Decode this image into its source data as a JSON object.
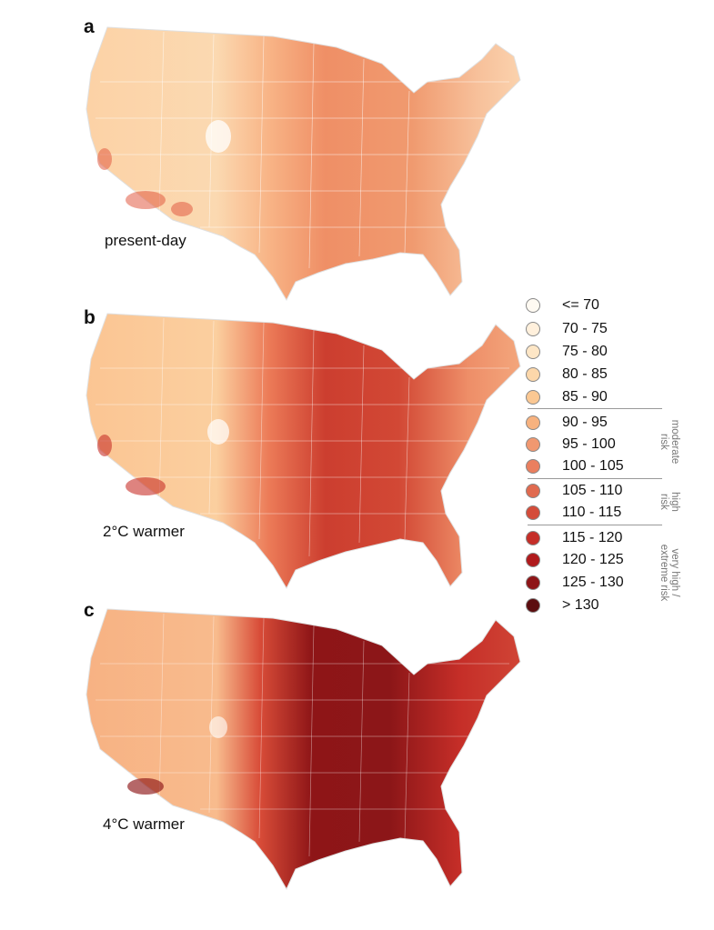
{
  "panels": [
    {
      "letter": "a",
      "caption": "present-day"
    },
    {
      "letter": "b",
      "caption": "2°C warmer"
    },
    {
      "letter": "c",
      "caption": "4°C warmer"
    }
  ],
  "legend": {
    "items": [
      {
        "label": "<= 70",
        "color": "#fffaf2"
      },
      {
        "label": "70 - 75",
        "color": "#fff0dc"
      },
      {
        "label": "75 - 80",
        "color": "#fde6c6"
      },
      {
        "label": "80 - 85",
        "color": "#fcd7aa"
      },
      {
        "label": "85 - 90",
        "color": "#fbc893"
      },
      {
        "label": "90 - 95",
        "color": "#f7b27f"
      },
      {
        "label": "95 - 100",
        "color": "#f19870"
      },
      {
        "label": "100 - 105",
        "color": "#ea7f5f"
      },
      {
        "label": "105 - 110",
        "color": "#e06a4f"
      },
      {
        "label": "110 - 115",
        "color": "#d44c3a"
      },
      {
        "label": "115 - 120",
        "color": "#c52e28"
      },
      {
        "label": "120 - 125",
        "color": "#b01a1c"
      },
      {
        "label": "125 - 130",
        "color": "#8e1517"
      },
      {
        "label": "> 130",
        "color": "#5c0d0f"
      }
    ],
    "groups": [
      {
        "label_line1": "moderate",
        "label_line2": "risk"
      },
      {
        "label_line1": "high",
        "label_line2": "risk"
      },
      {
        "label_line1": "very high /",
        "label_line2": "extreme risk"
      }
    ]
  },
  "colors": {
    "outline": "#ffffff",
    "border_lines": "#d9d9d9"
  }
}
